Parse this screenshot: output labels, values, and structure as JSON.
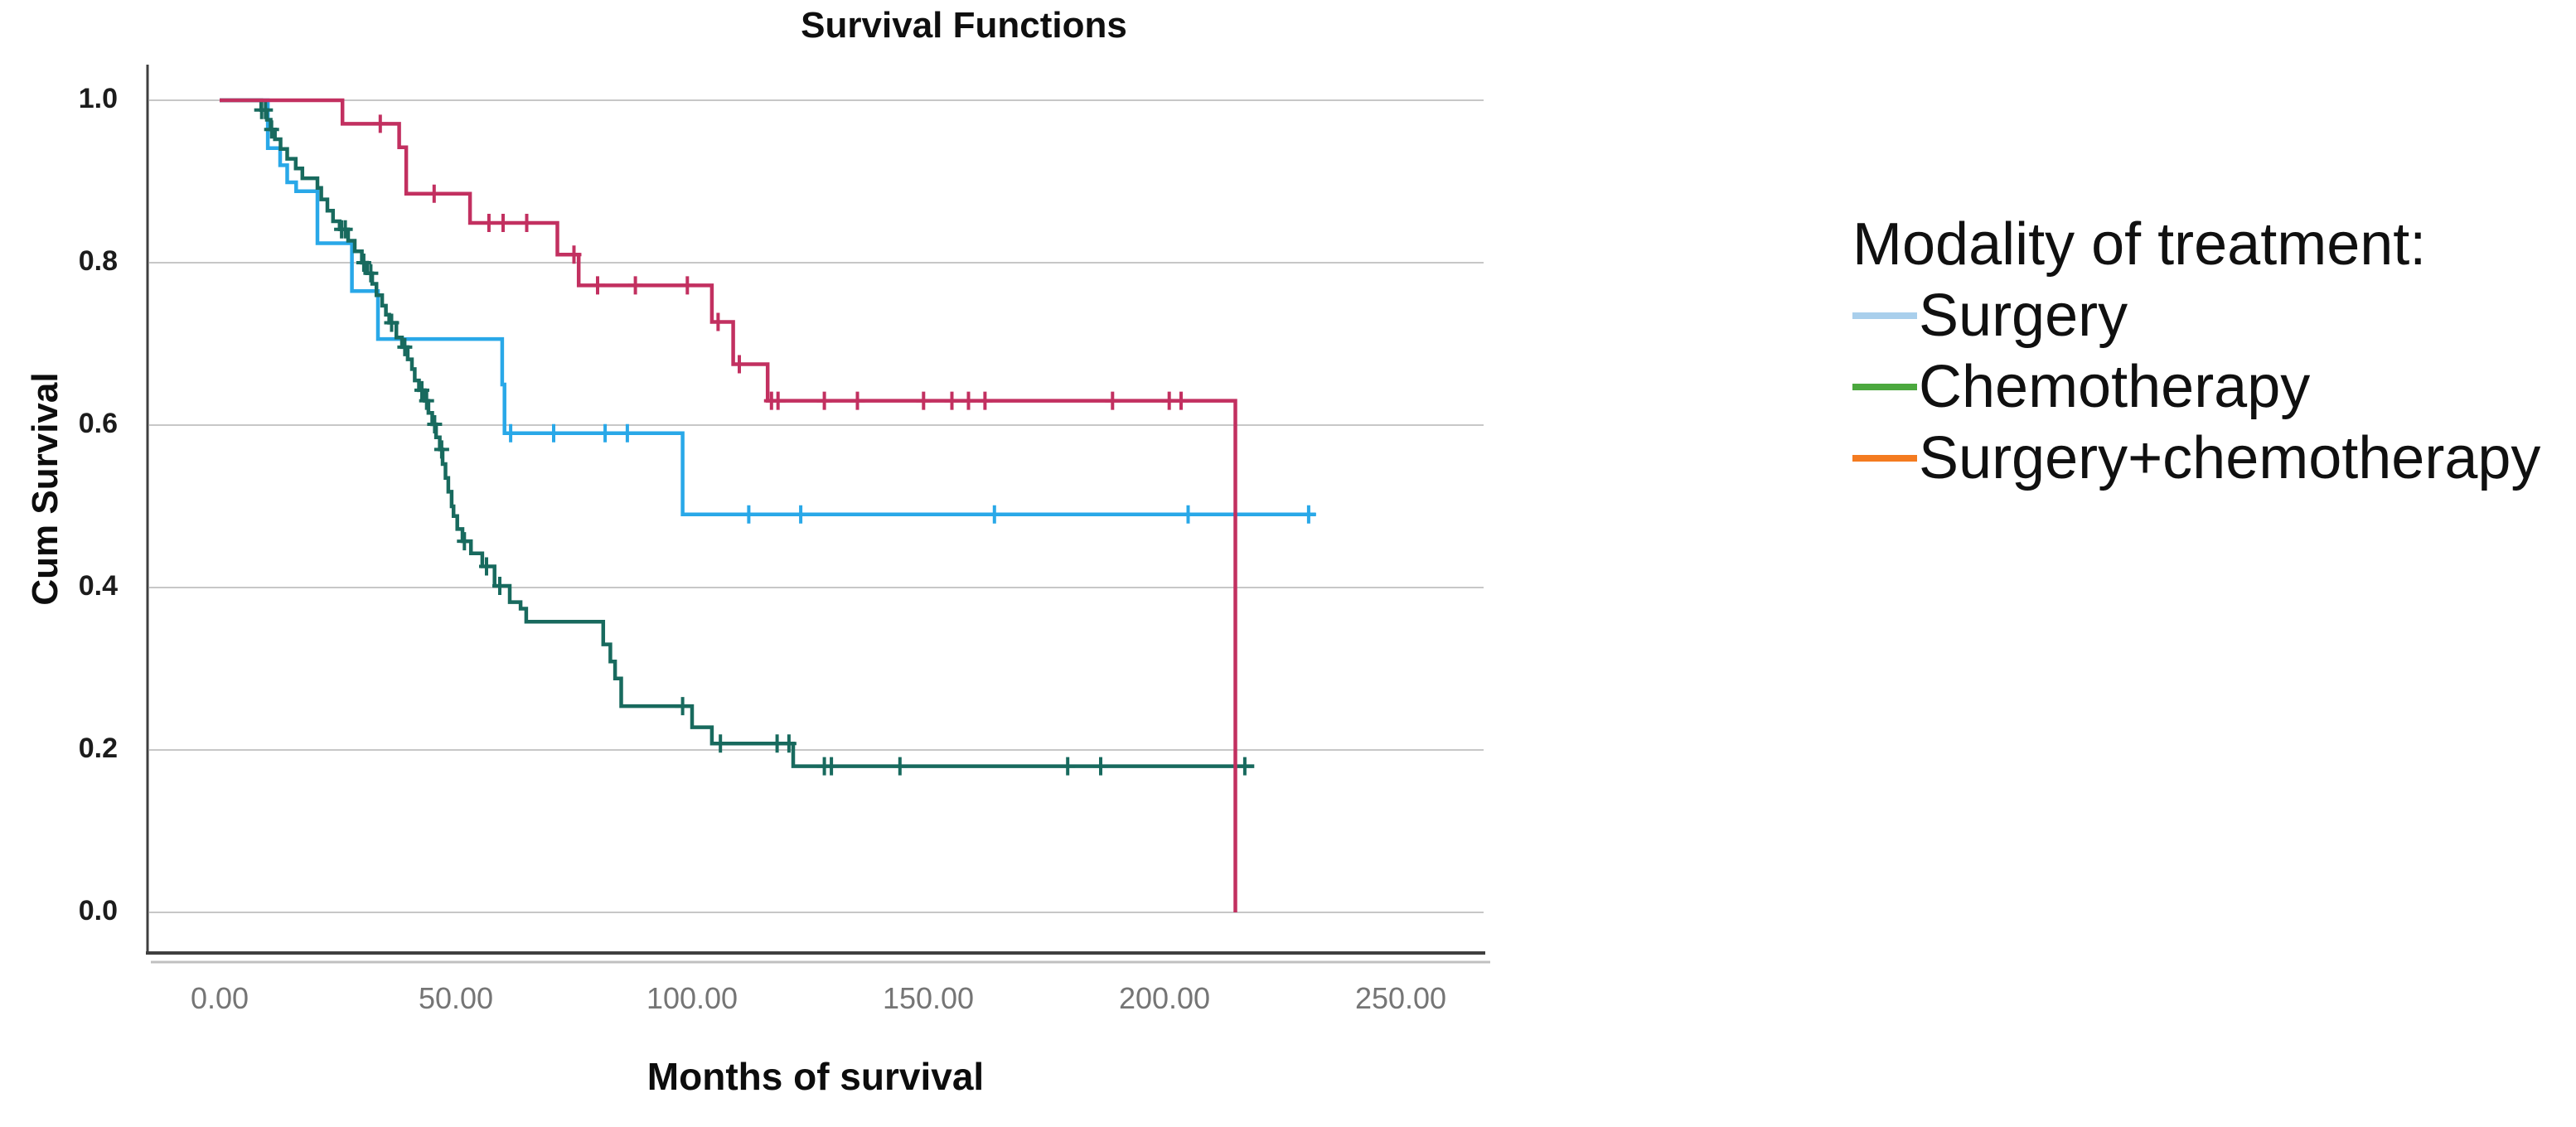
{
  "window": {
    "background": "#ffffff"
  },
  "chart_data": {
    "type": "line",
    "subtype": "kaplan-meier-step",
    "title": "Survival Functions",
    "xlabel": "Months of survival",
    "ylabel": "Cum Survival",
    "xlim": [
      0,
      250
    ],
    "ylim": [
      0.0,
      1.0
    ],
    "x_ticks": [
      "0.00",
      "50.00",
      "100.00",
      "150.00",
      "200.00",
      "250.00"
    ],
    "x_tick_values": [
      0,
      50,
      100,
      150,
      200,
      250
    ],
    "y_ticks": [
      "1.0",
      "0.8",
      "0.6",
      "0.4",
      "0.2",
      "0.0"
    ],
    "y_tick_values": [
      1.0,
      0.8,
      0.6,
      0.4,
      0.2,
      0.0
    ],
    "grid": "horizontal-only",
    "legend_position": "right-of-plot",
    "colors": {
      "gridline": "#c7c7c7",
      "axis": "#3f3f3f",
      "axis_shadow": "#c0c0c0",
      "x_tick_text": "#757575",
      "y_tick_text": "#1c1c1c"
    },
    "series": [
      {
        "name": "Surgery",
        "curve_color": "#29a8e8",
        "steps": [
          [
            0,
            1.0
          ],
          [
            10.2,
            0.941
          ],
          [
            12.8,
            0.92
          ],
          [
            14.3,
            0.899
          ],
          [
            16.2,
            0.888
          ],
          [
            20.7,
            0.824
          ],
          [
            28,
            0.765
          ],
          [
            33.5,
            0.706
          ],
          [
            59.8,
            0.65
          ],
          [
            60.3,
            0.59
          ],
          [
            98,
            0.49
          ]
        ],
        "end_t": 232,
        "censors": [
          [
            61.6,
            0.59
          ],
          [
            70.7,
            0.59
          ],
          [
            81.6,
            0.59
          ],
          [
            86.3,
            0.59
          ],
          [
            112,
            0.49
          ],
          [
            123,
            0.49
          ],
          [
            164,
            0.49
          ],
          [
            205,
            0.49
          ],
          [
            230.5,
            0.49
          ]
        ]
      },
      {
        "name": "Chemotherapy",
        "curve_color": "#186a5e",
        "steps": [
          [
            0,
            1.0
          ],
          [
            8.8,
            0.988
          ],
          [
            10,
            0.976
          ],
          [
            10.8,
            0.964
          ],
          [
            11.7,
            0.952
          ],
          [
            12.9,
            0.94
          ],
          [
            14.3,
            0.928
          ],
          [
            16.1,
            0.916
          ],
          [
            17.5,
            0.904
          ],
          [
            20.7,
            0.892
          ],
          [
            21.5,
            0.878
          ],
          [
            22.8,
            0.864
          ],
          [
            24,
            0.851
          ],
          [
            25.4,
            0.841
          ],
          [
            27.2,
            0.827
          ],
          [
            28.6,
            0.814
          ],
          [
            30.1,
            0.8
          ],
          [
            31.2,
            0.787
          ],
          [
            32.3,
            0.774
          ],
          [
            33.2,
            0.76
          ],
          [
            34.4,
            0.747
          ],
          [
            35.2,
            0.736
          ],
          [
            35.9,
            0.726
          ],
          [
            37.4,
            0.708
          ],
          [
            38.6,
            0.696
          ],
          [
            39.8,
            0.681
          ],
          [
            40.7,
            0.669
          ],
          [
            41.3,
            0.655
          ],
          [
            42.2,
            0.643
          ],
          [
            43.4,
            0.63
          ],
          [
            44.2,
            0.615
          ],
          [
            45,
            0.601
          ],
          [
            45.8,
            0.585
          ],
          [
            46.6,
            0.57
          ],
          [
            47.2,
            0.552
          ],
          [
            47.8,
            0.535
          ],
          [
            48.4,
            0.518
          ],
          [
            49.1,
            0.5
          ],
          [
            49.5,
            0.488
          ],
          [
            50.3,
            0.472
          ],
          [
            51.4,
            0.457
          ],
          [
            53.2,
            0.442
          ],
          [
            55.6,
            0.426
          ],
          [
            58.2,
            0.402
          ],
          [
            61.4,
            0.382
          ],
          [
            63.7,
            0.374
          ],
          [
            64.9,
            0.358
          ],
          [
            81.2,
            0.33
          ],
          [
            82.7,
            0.309
          ],
          [
            83.7,
            0.288
          ],
          [
            85,
            0.254
          ],
          [
            100,
            0.228
          ],
          [
            104.2,
            0.208
          ],
          [
            121.4,
            0.18
          ]
        ],
        "end_t": 219,
        "censors": [
          [
            8.9,
            0.988
          ],
          [
            9.7,
            0.988
          ],
          [
            11,
            0.964
          ],
          [
            25.8,
            0.841
          ],
          [
            26.6,
            0.841
          ],
          [
            30.5,
            0.8
          ],
          [
            32,
            0.787
          ],
          [
            36.4,
            0.726
          ],
          [
            39.2,
            0.696
          ],
          [
            42.8,
            0.643
          ],
          [
            43.8,
            0.63
          ],
          [
            45.5,
            0.601
          ],
          [
            47,
            0.57
          ],
          [
            51.8,
            0.457
          ],
          [
            56.5,
            0.426
          ],
          [
            59.3,
            0.402
          ],
          [
            98,
            0.254
          ],
          [
            106,
            0.208
          ],
          [
            118,
            0.208
          ],
          [
            120.5,
            0.208
          ],
          [
            128,
            0.18
          ],
          [
            129.5,
            0.18
          ],
          [
            144,
            0.18
          ],
          [
            179.5,
            0.18
          ],
          [
            186.5,
            0.18
          ],
          [
            217,
            0.18
          ]
        ]
      },
      {
        "name": "Surgery+chemotherapy",
        "curve_color": "#c23060",
        "steps": [
          [
            0,
            1.0
          ],
          [
            26,
            0.971
          ],
          [
            38,
            0.942
          ],
          [
            39.5,
            0.885
          ],
          [
            53,
            0.849
          ],
          [
            71.5,
            0.81
          ],
          [
            76,
            0.772
          ],
          [
            104.2,
            0.727
          ],
          [
            108.7,
            0.675
          ],
          [
            116,
            0.63
          ],
          [
            215,
            0.0
          ]
        ],
        "end_t": 215,
        "censors": [
          [
            34,
            0.971
          ],
          [
            45.4,
            0.885
          ],
          [
            57,
            0.849
          ],
          [
            60,
            0.849
          ],
          [
            65,
            0.849
          ],
          [
            75,
            0.81
          ],
          [
            80,
            0.772
          ],
          [
            88,
            0.772
          ],
          [
            99,
            0.772
          ],
          [
            105.5,
            0.727
          ],
          [
            110,
            0.675
          ],
          [
            116.8,
            0.63
          ],
          [
            118.2,
            0.63
          ],
          [
            128,
            0.63
          ],
          [
            135,
            0.63
          ],
          [
            149,
            0.63
          ],
          [
            155,
            0.63
          ],
          [
            158.5,
            0.63
          ],
          [
            162,
            0.63
          ],
          [
            189,
            0.63
          ],
          [
            201,
            0.63
          ],
          [
            203.5,
            0.63
          ]
        ]
      }
    ]
  },
  "legend": {
    "title": "Modality of treatment:",
    "items": [
      {
        "label": "Surgery",
        "swatch_color": "#a9cfec"
      },
      {
        "label": "Chemotherapy",
        "swatch_color": "#4ba83e"
      },
      {
        "label": "Surgery+chemotherapy",
        "swatch_color": "#f47b20"
      }
    ]
  }
}
